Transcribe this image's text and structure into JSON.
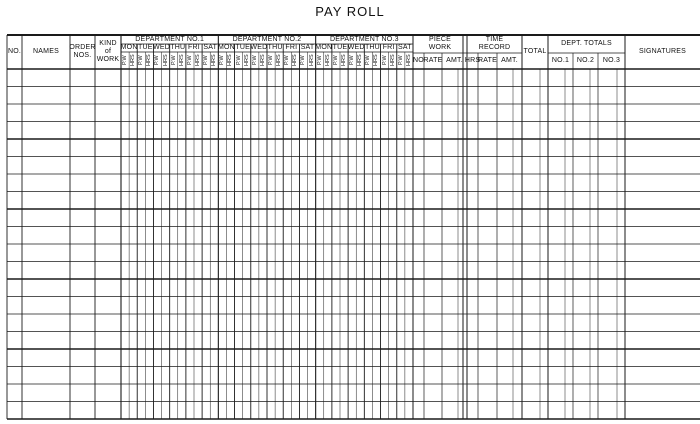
{
  "title": "PAY ROLL",
  "columns": {
    "no": "NO.",
    "names": "NAMES",
    "order_nos": "ORDER\nNOS.",
    "kind_of_work": "KIND\nof\nWORK",
    "piece_work": {
      "label": "PIECE\nWORK",
      "sub": [
        "NO",
        "RATE",
        "AMT."
      ]
    },
    "time_record": {
      "label": "TIME\nRECORD",
      "sub": [
        "HRS",
        "RATE",
        "AMT."
      ]
    },
    "total": "TOTAL",
    "dept_totals": {
      "label": "DEPT.  TOTALS",
      "sub": [
        "NO.1",
        "NO.2",
        "NO.3"
      ]
    },
    "signatures": "SIGNATURES"
  },
  "departments": [
    "DEPARTMENT   NO.1",
    "DEPARTMENT   NO.2",
    "DEPARTMENT   NO.3"
  ],
  "days": [
    "MON",
    "TUE",
    "WED",
    "THU",
    "FRI",
    "SAT"
  ],
  "day_sub": [
    "P.W",
    "HRS"
  ],
  "body_rows": 20
}
